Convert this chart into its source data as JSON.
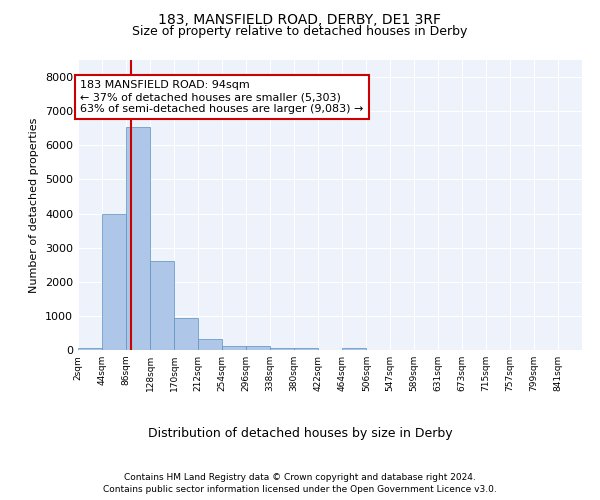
{
  "title1": "183, MANSFIELD ROAD, DERBY, DE1 3RF",
  "title2": "Size of property relative to detached houses in Derby",
  "xlabel": "Distribution of detached houses by size in Derby",
  "ylabel": "Number of detached properties",
  "footer1": "Contains HM Land Registry data © Crown copyright and database right 2024.",
  "footer2": "Contains public sector information licensed under the Open Government Licence v3.0.",
  "bin_labels": [
    "2sqm",
    "44sqm",
    "86sqm",
    "128sqm",
    "170sqm",
    "212sqm",
    "254sqm",
    "296sqm",
    "338sqm",
    "380sqm",
    "422sqm",
    "464sqm",
    "506sqm",
    "547sqm",
    "589sqm",
    "631sqm",
    "673sqm",
    "715sqm",
    "757sqm",
    "799sqm",
    "841sqm"
  ],
  "bar_values": [
    70,
    4000,
    6550,
    2600,
    950,
    330,
    130,
    130,
    70,
    70,
    0,
    70,
    0,
    0,
    0,
    0,
    0,
    0,
    0,
    0,
    0
  ],
  "bar_color": "#aec6e8",
  "bar_edgecolor": "#5a8fc0",
  "vline_x": 94,
  "vline_color": "#cc0000",
  "annotation_text": "183 MANSFIELD ROAD: 94sqm\n← 37% of detached houses are smaller (5,303)\n63% of semi-detached houses are larger (9,083) →",
  "annotation_box_edgecolor": "#cc0000",
  "annotation_fontsize": 8,
  "ylim": [
    0,
    8500
  ],
  "yticks": [
    0,
    1000,
    2000,
    3000,
    4000,
    5000,
    6000,
    7000,
    8000
  ],
  "bin_edges": [
    2,
    44,
    86,
    128,
    170,
    212,
    254,
    296,
    338,
    380,
    422,
    464,
    506,
    547,
    589,
    631,
    673,
    715,
    757,
    799,
    841
  ],
  "bin_width": 42,
  "background_color": "#eef2fa",
  "title1_fontsize": 10,
  "title2_fontsize": 9,
  "xlabel_fontsize": 9,
  "ylabel_fontsize": 8,
  "footer_fontsize": 6.5
}
